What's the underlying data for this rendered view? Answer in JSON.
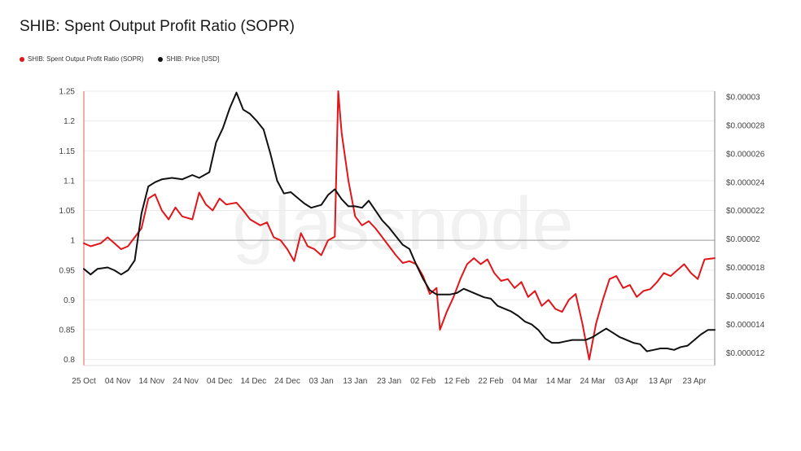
{
  "title": "SHIB: Spent Output Profit Ratio (SOPR)",
  "watermark": "glassnode",
  "colors": {
    "sopr": "#e0161b",
    "price": "#111111",
    "grid": "#ebebeb",
    "baseline": "#9a9a9a"
  },
  "legend": [
    {
      "label": "SHIB: Spent Output Profit Ratio (SOPR)",
      "color": "#e0161b"
    },
    {
      "label": "SHIB: Price [USD]",
      "color": "#111111"
    }
  ],
  "chart_data": {
    "type": "line",
    "x_start": "2021-10-25",
    "x_end": "2022-04-29",
    "x_tick_labels": [
      "25 Oct",
      "04 Nov",
      "14 Nov",
      "24 Nov",
      "04 Dec",
      "14 Dec",
      "24 Dec",
      "03 Jan",
      "13 Jan",
      "23 Jan",
      "02 Feb",
      "12 Feb",
      "22 Feb",
      "04 Mar",
      "14 Mar",
      "24 Mar",
      "03 Apr",
      "13 Apr",
      "23 Apr"
    ],
    "y_left": {
      "min": 0.79,
      "max": 1.25,
      "ticks": [
        0.8,
        0.85,
        0.9,
        0.95,
        1,
        1.05,
        1.1,
        1.15,
        1.2,
        1.25
      ],
      "tick_labels": [
        "0.8",
        "0.85",
        "0.9",
        "0.95",
        "1",
        "1.05",
        "1.1",
        "1.15",
        "1.2",
        "1.25"
      ],
      "reference_line": 1
    },
    "y_right": {
      "min": 1.11e-05,
      "max": 3.04e-05,
      "ticks": [
        1.2e-05,
        1.4e-05,
        1.6e-05,
        1.8e-05,
        2e-05,
        2.2e-05,
        2.4e-05,
        2.6e-05,
        2.8e-05,
        3e-05
      ],
      "tick_labels": [
        "$0.000012",
        "$0.000014",
        "$0.000016",
        "$0.000018",
        "$0.00002",
        "$0.000022",
        "$0.000024",
        "$0.000026",
        "$0.000028",
        "$0.00003"
      ]
    },
    "grid": true,
    "legend_position": "top-left",
    "series": [
      {
        "name": "SHIB: Spent Output Profit Ratio (SOPR)",
        "axis": "left",
        "points": [
          [
            "2021-10-25",
            0.995
          ],
          [
            "2021-10-27",
            0.99
          ],
          [
            "2021-10-30",
            0.995
          ],
          [
            "2021-11-01",
            1.005
          ],
          [
            "2021-11-03",
            0.995
          ],
          [
            "2021-11-05",
            0.985
          ],
          [
            "2021-11-07",
            0.99
          ],
          [
            "2021-11-09",
            1.005
          ],
          [
            "2021-11-11",
            1.02
          ],
          [
            "2021-11-13",
            1.07
          ],
          [
            "2021-11-15",
            1.077
          ],
          [
            "2021-11-17",
            1.05
          ],
          [
            "2021-11-19",
            1.035
          ],
          [
            "2021-11-21",
            1.055
          ],
          [
            "2021-11-23",
            1.04
          ],
          [
            "2021-11-26",
            1.035
          ],
          [
            "2021-11-28",
            1.08
          ],
          [
            "2021-11-30",
            1.06
          ],
          [
            "2021-12-02",
            1.05
          ],
          [
            "2021-12-04",
            1.07
          ],
          [
            "2021-12-06",
            1.06
          ],
          [
            "2021-12-09",
            1.063
          ],
          [
            "2021-12-11",
            1.05
          ],
          [
            "2021-12-13",
            1.035
          ],
          [
            "2021-12-16",
            1.025
          ],
          [
            "2021-12-18",
            1.03
          ],
          [
            "2021-12-20",
            1.005
          ],
          [
            "2021-12-22",
            1.0
          ],
          [
            "2021-12-24",
            0.985
          ],
          [
            "2021-12-26",
            0.965
          ],
          [
            "2021-12-28",
            1.012
          ],
          [
            "2021-12-30",
            0.99
          ],
          [
            "2022-01-01",
            0.985
          ],
          [
            "2022-01-03",
            0.975
          ],
          [
            "2022-01-05",
            1.0
          ],
          [
            "2022-01-07",
            1.006
          ],
          [
            "2022-01-08",
            1.25
          ],
          [
            "2022-01-09",
            1.18
          ],
          [
            "2022-01-11",
            1.1
          ],
          [
            "2022-01-13",
            1.04
          ],
          [
            "2022-01-15",
            1.025
          ],
          [
            "2022-01-17",
            1.032
          ],
          [
            "2022-01-19",
            1.02
          ],
          [
            "2022-01-21",
            1.005
          ],
          [
            "2022-01-23",
            0.99
          ],
          [
            "2022-01-25",
            0.975
          ],
          [
            "2022-01-27",
            0.962
          ],
          [
            "2022-01-29",
            0.965
          ],
          [
            "2022-01-31",
            0.96
          ],
          [
            "2022-02-02",
            0.94
          ],
          [
            "2022-02-04",
            0.91
          ],
          [
            "2022-02-06",
            0.92
          ],
          [
            "2022-02-07",
            0.85
          ],
          [
            "2022-02-09",
            0.88
          ],
          [
            "2022-02-11",
            0.905
          ],
          [
            "2022-02-13",
            0.935
          ],
          [
            "2022-02-15",
            0.96
          ],
          [
            "2022-02-17",
            0.97
          ],
          [
            "2022-02-19",
            0.96
          ],
          [
            "2022-02-21",
            0.968
          ],
          [
            "2022-02-23",
            0.945
          ],
          [
            "2022-02-25",
            0.932
          ],
          [
            "2022-02-27",
            0.935
          ],
          [
            "2022-03-01",
            0.92
          ],
          [
            "2022-03-03",
            0.93
          ],
          [
            "2022-03-05",
            0.905
          ],
          [
            "2022-03-07",
            0.915
          ],
          [
            "2022-03-09",
            0.89
          ],
          [
            "2022-03-11",
            0.9
          ],
          [
            "2022-03-13",
            0.885
          ],
          [
            "2022-03-15",
            0.88
          ],
          [
            "2022-03-17",
            0.9
          ],
          [
            "2022-03-19",
            0.91
          ],
          [
            "2022-03-21",
            0.86
          ],
          [
            "2022-03-23",
            0.8
          ],
          [
            "2022-03-25",
            0.86
          ],
          [
            "2022-03-27",
            0.9
          ],
          [
            "2022-03-29",
            0.935
          ],
          [
            "2022-03-31",
            0.94
          ],
          [
            "2022-04-02",
            0.92
          ],
          [
            "2022-04-04",
            0.925
          ],
          [
            "2022-04-06",
            0.905
          ],
          [
            "2022-04-08",
            0.915
          ],
          [
            "2022-04-10",
            0.918
          ],
          [
            "2022-04-12",
            0.93
          ],
          [
            "2022-04-14",
            0.945
          ],
          [
            "2022-04-16",
            0.94
          ],
          [
            "2022-04-18",
            0.95
          ],
          [
            "2022-04-20",
            0.96
          ],
          [
            "2022-04-22",
            0.945
          ],
          [
            "2022-04-24",
            0.935
          ],
          [
            "2022-04-26",
            0.968
          ],
          [
            "2022-04-29",
            0.97
          ]
        ]
      },
      {
        "name": "SHIB: Price [USD]",
        "axis": "right",
        "points": [
          [
            "2021-10-25",
            1.79e-05
          ],
          [
            "2021-10-27",
            1.75e-05
          ],
          [
            "2021-10-29",
            1.79e-05
          ],
          [
            "2021-11-01",
            1.8e-05
          ],
          [
            "2021-11-03",
            1.78e-05
          ],
          [
            "2021-11-05",
            1.75e-05
          ],
          [
            "2021-11-07",
            1.78e-05
          ],
          [
            "2021-11-09",
            1.85e-05
          ],
          [
            "2021-11-11",
            2.18e-05
          ],
          [
            "2021-11-13",
            2.37e-05
          ],
          [
            "2021-11-15",
            2.4e-05
          ],
          [
            "2021-11-17",
            2.42e-05
          ],
          [
            "2021-11-20",
            2.43e-05
          ],
          [
            "2021-11-23",
            2.42e-05
          ],
          [
            "2021-11-26",
            2.45e-05
          ],
          [
            "2021-11-28",
            2.43e-05
          ],
          [
            "2021-12-01",
            2.47e-05
          ],
          [
            "2021-12-03",
            2.68e-05
          ],
          [
            "2021-12-05",
            2.78e-05
          ],
          [
            "2021-12-07",
            2.92e-05
          ],
          [
            "2021-12-09",
            3.03e-05
          ],
          [
            "2021-12-11",
            2.91e-05
          ],
          [
            "2021-12-13",
            2.88e-05
          ],
          [
            "2021-12-15",
            2.83e-05
          ],
          [
            "2021-12-17",
            2.77e-05
          ],
          [
            "2021-12-19",
            2.6e-05
          ],
          [
            "2021-12-21",
            2.41e-05
          ],
          [
            "2021-12-23",
            2.32e-05
          ],
          [
            "2021-12-25",
            2.33e-05
          ],
          [
            "2021-12-27",
            2.29e-05
          ],
          [
            "2021-12-29",
            2.25e-05
          ],
          [
            "2021-12-31",
            2.22e-05
          ],
          [
            "2022-01-03",
            2.24e-05
          ],
          [
            "2022-01-05",
            2.31e-05
          ],
          [
            "2022-01-07",
            2.35e-05
          ],
          [
            "2022-01-09",
            2.28e-05
          ],
          [
            "2022-01-11",
            2.23e-05
          ],
          [
            "2022-01-13",
            2.23e-05
          ],
          [
            "2022-01-15",
            2.22e-05
          ],
          [
            "2022-01-17",
            2.27e-05
          ],
          [
            "2022-01-19",
            2.2e-05
          ],
          [
            "2022-01-21",
            2.13e-05
          ],
          [
            "2022-01-23",
            2.08e-05
          ],
          [
            "2022-01-25",
            2.02e-05
          ],
          [
            "2022-01-27",
            1.96e-05
          ],
          [
            "2022-01-29",
            1.93e-05
          ],
          [
            "2022-01-31",
            1.82e-05
          ],
          [
            "2022-02-02",
            1.72e-05
          ],
          [
            "2022-02-04",
            1.64e-05
          ],
          [
            "2022-02-06",
            1.61e-05
          ],
          [
            "2022-02-08",
            1.61e-05
          ],
          [
            "2022-02-10",
            1.61e-05
          ],
          [
            "2022-02-12",
            1.62e-05
          ],
          [
            "2022-02-14",
            1.65e-05
          ],
          [
            "2022-02-16",
            1.63e-05
          ],
          [
            "2022-02-18",
            1.61e-05
          ],
          [
            "2022-02-20",
            1.59e-05
          ],
          [
            "2022-02-22",
            1.58e-05
          ],
          [
            "2022-02-24",
            1.53e-05
          ],
          [
            "2022-02-26",
            1.51e-05
          ],
          [
            "2022-02-28",
            1.49e-05
          ],
          [
            "2022-03-02",
            1.46e-05
          ],
          [
            "2022-03-04",
            1.42e-05
          ],
          [
            "2022-03-06",
            1.4e-05
          ],
          [
            "2022-03-08",
            1.36e-05
          ],
          [
            "2022-03-10",
            1.3e-05
          ],
          [
            "2022-03-12",
            1.27e-05
          ],
          [
            "2022-03-14",
            1.27e-05
          ],
          [
            "2022-03-16",
            1.28e-05
          ],
          [
            "2022-03-18",
            1.29e-05
          ],
          [
            "2022-03-20",
            1.29e-05
          ],
          [
            "2022-03-22",
            1.29e-05
          ],
          [
            "2022-03-24",
            1.31e-05
          ],
          [
            "2022-03-26",
            1.34e-05
          ],
          [
            "2022-03-28",
            1.37e-05
          ],
          [
            "2022-03-30",
            1.34e-05
          ],
          [
            "2022-04-01",
            1.31e-05
          ],
          [
            "2022-04-03",
            1.29e-05
          ],
          [
            "2022-04-05",
            1.27e-05
          ],
          [
            "2022-04-07",
            1.26e-05
          ],
          [
            "2022-04-09",
            1.21e-05
          ],
          [
            "2022-04-11",
            1.22e-05
          ],
          [
            "2022-04-13",
            1.23e-05
          ],
          [
            "2022-04-15",
            1.23e-05
          ],
          [
            "2022-04-17",
            1.22e-05
          ],
          [
            "2022-04-19",
            1.24e-05
          ],
          [
            "2022-04-21",
            1.25e-05
          ],
          [
            "2022-04-23",
            1.29e-05
          ],
          [
            "2022-04-25",
            1.33e-05
          ],
          [
            "2022-04-27",
            1.36e-05
          ],
          [
            "2022-04-29",
            1.36e-05
          ]
        ]
      }
    ]
  }
}
